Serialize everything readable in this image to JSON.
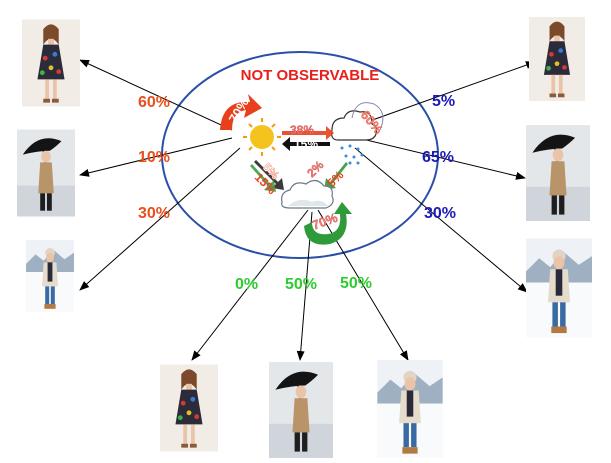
{
  "title": "NOT OBSERVABLE",
  "states": {
    "sunny": {
      "icon": "sun-icon"
    },
    "rainy": {
      "icon": "rain-cloud-icon"
    },
    "cloudy": {
      "icon": "cloud-icon"
    }
  },
  "transitions": {
    "sunny_self": "70%",
    "sunny_to_rainy": "15%",
    "rainy_to_sunny": "38%",
    "rainy_self": "60%",
    "sunny_to_cloudy": "15%",
    "cloudy_to_sunny": "5%",
    "rainy_to_cloudy": "2%",
    "cloudy_to_rainy": "5%",
    "cloudy_self": "70%"
  },
  "emissions": {
    "sunny": [
      "60%",
      "10%",
      "30%"
    ],
    "rainy": [
      "5%",
      "65%",
      "30%"
    ],
    "cloudy": [
      "0%",
      "50%",
      "50%"
    ]
  },
  "observations": [
    "dress",
    "umbrella-coat",
    "winter-coat"
  ],
  "colors": {
    "sunny": "#e8501c",
    "rainy": "#1a1ab8",
    "cloudy": "#2ecc2e",
    "title": "#e8201c",
    "ellipse": "#2a4fa8",
    "loop_red": "#e8401c",
    "loop_green": "#2e9a3a"
  }
}
